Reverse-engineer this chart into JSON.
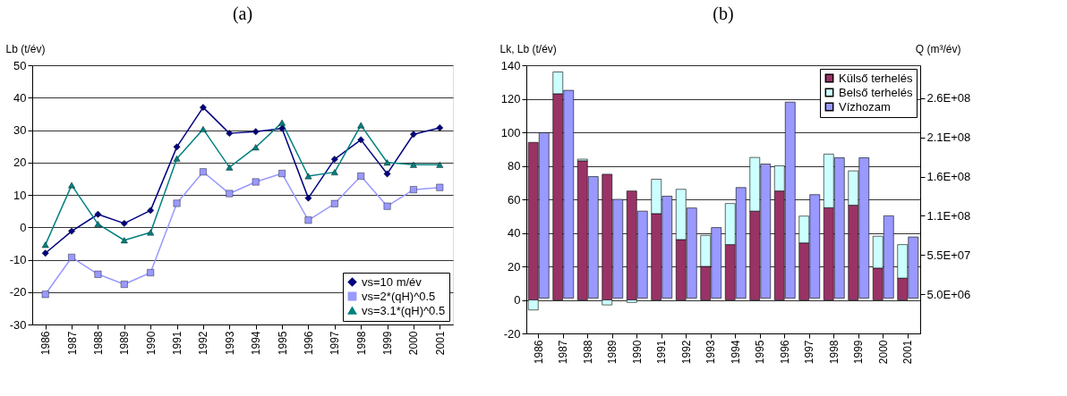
{
  "chart_data": [
    {
      "type": "line",
      "title": "(a)",
      "ylabel": "Lb (t/év)",
      "categories": [
        "1986",
        "1987",
        "1988",
        "1989",
        "1990",
        "1991",
        "1992",
        "1993",
        "1994",
        "1995",
        "1996",
        "1997",
        "1998",
        "1999",
        "2000",
        "2001"
      ],
      "series": [
        {
          "name": "vs=10 m/év",
          "color": "#000080",
          "marker": "diamond",
          "values": [
            -8,
            -1.2,
            4,
            1.2,
            5.2,
            24.8,
            37,
            29,
            29.5,
            30.5,
            9,
            21,
            27,
            16.5,
            28.7,
            30.7
          ]
        },
        {
          "name": "vs=2*(qH)^0.5",
          "color": "#9999ff",
          "marker": "square",
          "values": [
            -20.7,
            -9.3,
            -14.5,
            -17.6,
            -14,
            7.4,
            17.1,
            10.4,
            14,
            16.6,
            2.2,
            7.3,
            15.8,
            6.5,
            11.6,
            12.3
          ]
        },
        {
          "name": "vs=3.1*(qH)^0.5",
          "color": "#008080",
          "marker": "triangle",
          "values": [
            -5.4,
            13,
            1,
            -4,
            -1.6,
            21.2,
            30.3,
            18.5,
            24.7,
            32.3,
            15.8,
            17,
            31.5,
            20,
            19.3,
            19.3
          ]
        }
      ],
      "ylim": [
        -30,
        50
      ],
      "yticks": [
        -30,
        -20,
        -10,
        0,
        10,
        20,
        30,
        40,
        50
      ],
      "grid": "y",
      "legend": "bottom right",
      "line_style": "solid"
    },
    {
      "type": "bar",
      "title": "(b)",
      "ylabel": "Lk, Lb (t/év)",
      "y2label": "Q (m³/év)",
      "stacked": true,
      "categories": [
        "1986",
        "1987",
        "1988",
        "1989",
        "1990",
        "1991",
        "1992",
        "1993",
        "1994",
        "1995",
        "1996",
        "1997",
        "1998",
        "1999",
        "2000",
        "2001"
      ],
      "series": [
        {
          "name": "Külső terhelés",
          "color": "#993366",
          "type": "bar",
          "values": [
            94,
            123,
            83,
            75,
            65,
            51.5,
            36,
            20,
            33,
            53,
            65,
            34,
            55,
            56.5,
            19,
            13
          ]
        },
        {
          "name": "Belső terhelés",
          "color": "#ccffff",
          "type": "bar",
          "values": [
            -6,
            13,
            1,
            -3,
            -1.5,
            20.5,
            30,
            18.5,
            24.5,
            32,
            15,
            16,
            32,
            20.5,
            19,
            20
          ]
        },
        {
          "name": "Vízhozam",
          "color": "#9999ff",
          "type": "bar",
          "axis": "y2",
          "values": [
            211000000.0,
            265000000.0,
            155000000.0,
            126000000.0,
            111000000.0,
            130000000.0,
            115000000.0,
            90000000.0,
            141000000.0,
            171000000.0,
            250000000.0,
            132000000.0,
            179000000.0,
            179000000.0,
            105000000.0,
            78000000.0
          ]
        }
      ],
      "ylim": [
        -20,
        140
      ],
      "yticks": [
        -20,
        0,
        20,
        40,
        60,
        80,
        100,
        120,
        140
      ],
      "y2lim": [
        -45000000.0,
        297000000.0
      ],
      "y2ticks": [
        {
          "value": 5000000.0,
          "label": "5.0E+06"
        },
        {
          "value": 55000000.0,
          "label": "5.5E+07"
        },
        {
          "value": 105000000.0,
          "label": "1.1E+08"
        },
        {
          "value": 155000000.0,
          "label": "1.6E+08"
        },
        {
          "value": 205000000.0,
          "label": "2.1E+08"
        },
        {
          "value": 255000000.0,
          "label": "2.6E+08"
        }
      ],
      "grid": "y",
      "legend": "top right"
    }
  ]
}
